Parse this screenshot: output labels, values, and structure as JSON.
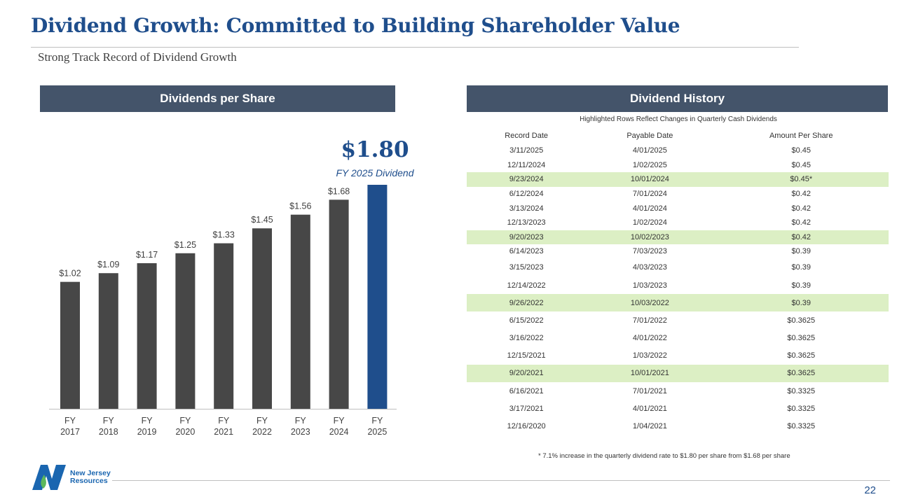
{
  "header": {
    "title": "Dividend Growth: Committed to Building Shareholder Value",
    "subtitle": "Strong Track Record of Dividend Growth"
  },
  "left_panel": {
    "header": "Dividends per Share",
    "callout_value": "$1.80",
    "callout_label": "FY 2025 Dividend"
  },
  "chart_data": {
    "type": "bar",
    "title": "Dividends per Share",
    "categories": [
      [
        "FY",
        "2017"
      ],
      [
        "FY",
        "2018"
      ],
      [
        "FY",
        "2019"
      ],
      [
        "FY",
        "2020"
      ],
      [
        "FY",
        "2021"
      ],
      [
        "FY",
        "2022"
      ],
      [
        "FY",
        "2023"
      ],
      [
        "FY",
        "2024"
      ],
      [
        "FY",
        "2025"
      ]
    ],
    "values": [
      1.02,
      1.09,
      1.17,
      1.25,
      1.33,
      1.45,
      1.56,
      1.68,
      1.8
    ],
    "labels": [
      "$1.02",
      "$1.09",
      "$1.17",
      "$1.25",
      "$1.33",
      "$1.45",
      "$1.56",
      "$1.68",
      ""
    ],
    "colors": [
      "#474747",
      "#474747",
      "#474747",
      "#474747",
      "#474747",
      "#474747",
      "#474747",
      "#474747",
      "#1f4e8c"
    ],
    "ylim": [
      0,
      1.8
    ],
    "grid": false,
    "xlabel": "",
    "ylabel": ""
  },
  "right_panel": {
    "header": "Dividend History",
    "caption": "Highlighted Rows Reflect Changes in Quarterly Cash Dividends",
    "columns": [
      "Record Date",
      "Payable Date",
      "Amount Per Share"
    ],
    "rows": [
      {
        "cells": [
          "3/11/2025",
          "4/01/2025",
          "$0.45"
        ],
        "highlight": false
      },
      {
        "cells": [
          "12/11/2024",
          "1/02/2025",
          "$0.45"
        ],
        "highlight": false
      },
      {
        "cells": [
          "9/23/2024",
          "10/01/2024",
          "$0.45*"
        ],
        "highlight": true
      },
      {
        "cells": [
          "6/12/2024",
          "7/01/2024",
          "$0.42"
        ],
        "highlight": false
      },
      {
        "cells": [
          "3/13/2024",
          "4/01/2024",
          "$0.42"
        ],
        "highlight": false
      },
      {
        "cells": [
          "12/13/2023",
          "1/02/2024",
          "$0.42"
        ],
        "highlight": false
      },
      {
        "cells": [
          "9/20/2023",
          "10/02/2023",
          "$0.42"
        ],
        "highlight": true
      },
      {
        "cells": [
          "6/14/2023",
          "7/03/2023",
          "$0.39"
        ],
        "highlight": false
      },
      {
        "cells": [
          "3/15/2023",
          "4/03/2023",
          "$0.39"
        ],
        "highlight": false
      },
      {
        "cells": [
          "12/14/2022",
          "1/03/2023",
          "$0.39"
        ],
        "highlight": false
      },
      {
        "cells": [
          "9/26/2022",
          "10/03/2022",
          "$0.39"
        ],
        "highlight": true
      },
      {
        "cells": [
          "6/15/2022",
          "7/01/2022",
          "$0.3625"
        ],
        "highlight": false
      },
      {
        "cells": [
          "3/16/2022",
          "4/01/2022",
          "$0.3625"
        ],
        "highlight": false
      },
      {
        "cells": [
          "12/15/2021",
          "1/03/2022",
          "$0.3625"
        ],
        "highlight": false
      },
      {
        "cells": [
          "9/20/2021",
          "10/01/2021",
          "$0.3625"
        ],
        "highlight": true
      },
      {
        "cells": [
          "6/16/2021",
          "7/01/2021",
          "$0.3325"
        ],
        "highlight": false
      },
      {
        "cells": [
          "3/17/2021",
          "4/01/2021",
          "$0.3325"
        ],
        "highlight": false
      },
      {
        "cells": [
          "12/16/2020",
          "1/04/2021",
          "$0.3325"
        ],
        "highlight": false
      }
    ],
    "footnote": "* 7.1% increase in the quarterly dividend rate to $1.80 per share from $1.68 per share"
  },
  "footer": {
    "logo_text": "New Jersey Resources",
    "page_number": "22"
  }
}
